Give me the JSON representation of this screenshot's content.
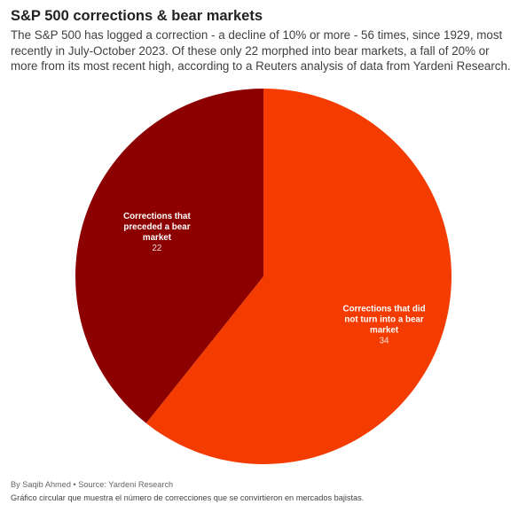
{
  "header": {
    "title": "S&P 500 corrections & bear markets",
    "subtitle": "The S&P 500 has logged a correction - a decline of 10% or more - 56 times, since 1929, most recently in July-October 2023. Of these only 22 morphed into bear markets, a fall of 20% or more from its most recent high, according to a Reuters analysis of data from Yardeni Research."
  },
  "chart_data": {
    "type": "pie",
    "title": "",
    "slices": [
      {
        "label_lines": [
          "Corrections that did",
          "not turn into a bear",
          "market"
        ],
        "label": "Corrections that did not turn into a bear market",
        "value": 34,
        "value_text": "34",
        "color": "#f43b00"
      },
      {
        "label_lines": [
          "Corrections that",
          "preceded a bear",
          "market"
        ],
        "label": "Corrections that preceded a bear market",
        "value": 22,
        "value_text": "22",
        "color": "#8c0000"
      }
    ],
    "start": "12 o'clock",
    "direction": "clockwise",
    "legend": "none"
  },
  "footer": {
    "byline": "By Saqib Ahmed • Source: Yardeni Research",
    "note": "Gráfico circular que muestra el número de correcciones que se convirtieron en mercados bajistas."
  }
}
